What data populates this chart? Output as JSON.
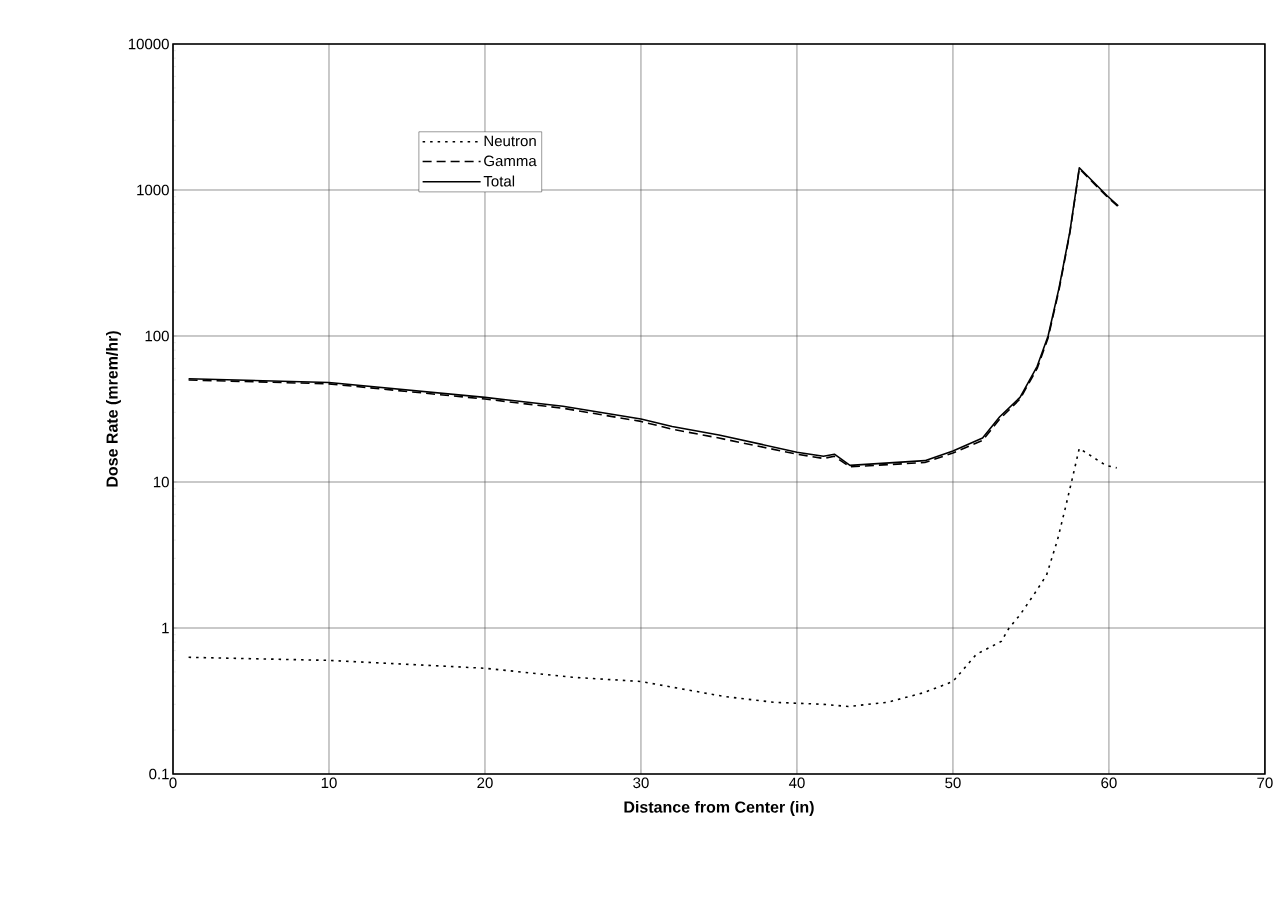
{
  "chart_data": {
    "type": "line",
    "xlabel": "Distance from Center (in)",
    "ylabel": "Dose Rate (mrem/hr)",
    "xlim": [
      0,
      70
    ],
    "xticks": [
      0,
      10,
      20,
      30,
      40,
      50,
      60,
      70
    ],
    "ylim": [
      0.1,
      10000
    ],
    "yticks": [
      0.1,
      1,
      10,
      100,
      1000,
      10000
    ],
    "log": "y",
    "grid": true,
    "legend": "top left",
    "marker": "none",
    "series": [
      {
        "name": "Neutron",
        "color": "#000000",
        "line_style": "dotted",
        "x": [
          1,
          10,
          20,
          25.6,
          30,
          35.3,
          38.5,
          41.7,
          43.3,
          45.8,
          48.1,
          50,
          51.5,
          53.1,
          53.6,
          54.3,
          55.2,
          56.0,
          56.7,
          57.2,
          57.6,
          58.1,
          59.8,
          60.5
        ],
        "values": [
          0.63,
          0.6,
          0.53,
          0.46,
          0.43,
          0.34,
          0.31,
          0.3,
          0.29,
          0.31,
          0.36,
          0.43,
          0.66,
          0.81,
          1.0,
          1.23,
          1.7,
          2.3,
          4.0,
          6.6,
          10,
          17,
          13,
          12.5
        ]
      },
      {
        "name": "Gamma",
        "color": "#000000",
        "line_style": "dashed",
        "x": [
          1,
          10,
          20,
          25,
          30,
          32,
          35,
          40,
          41.7,
          42.4,
          43.4,
          48.2,
          50,
          51.9,
          53,
          54.3,
          55.4,
          56.1,
          56.8,
          57.5,
          58.1,
          59.9,
          60.6
        ],
        "values": [
          50,
          47,
          37,
          32,
          26,
          23,
          20,
          15.5,
          14.5,
          15,
          12.7,
          13.6,
          15.8,
          19.3,
          27,
          37,
          60,
          97,
          207,
          510,
          1400,
          895,
          770
        ]
      },
      {
        "name": "Total",
        "color": "#000000",
        "line_style": "solid",
        "x": [
          1,
          10,
          20,
          25,
          30,
          32,
          35,
          40,
          41.7,
          42.4,
          43.4,
          48.2,
          50,
          51.9,
          53,
          54.3,
          55.4,
          56.1,
          56.8,
          57.5,
          58.1,
          59.9,
          60.6
        ],
        "values": [
          51,
          48,
          38,
          33,
          27,
          24,
          21,
          16,
          15,
          15.5,
          13,
          14,
          16.3,
          20,
          28,
          38,
          62,
          100,
          213,
          520,
          1420,
          910,
          780
        ]
      }
    ]
  }
}
